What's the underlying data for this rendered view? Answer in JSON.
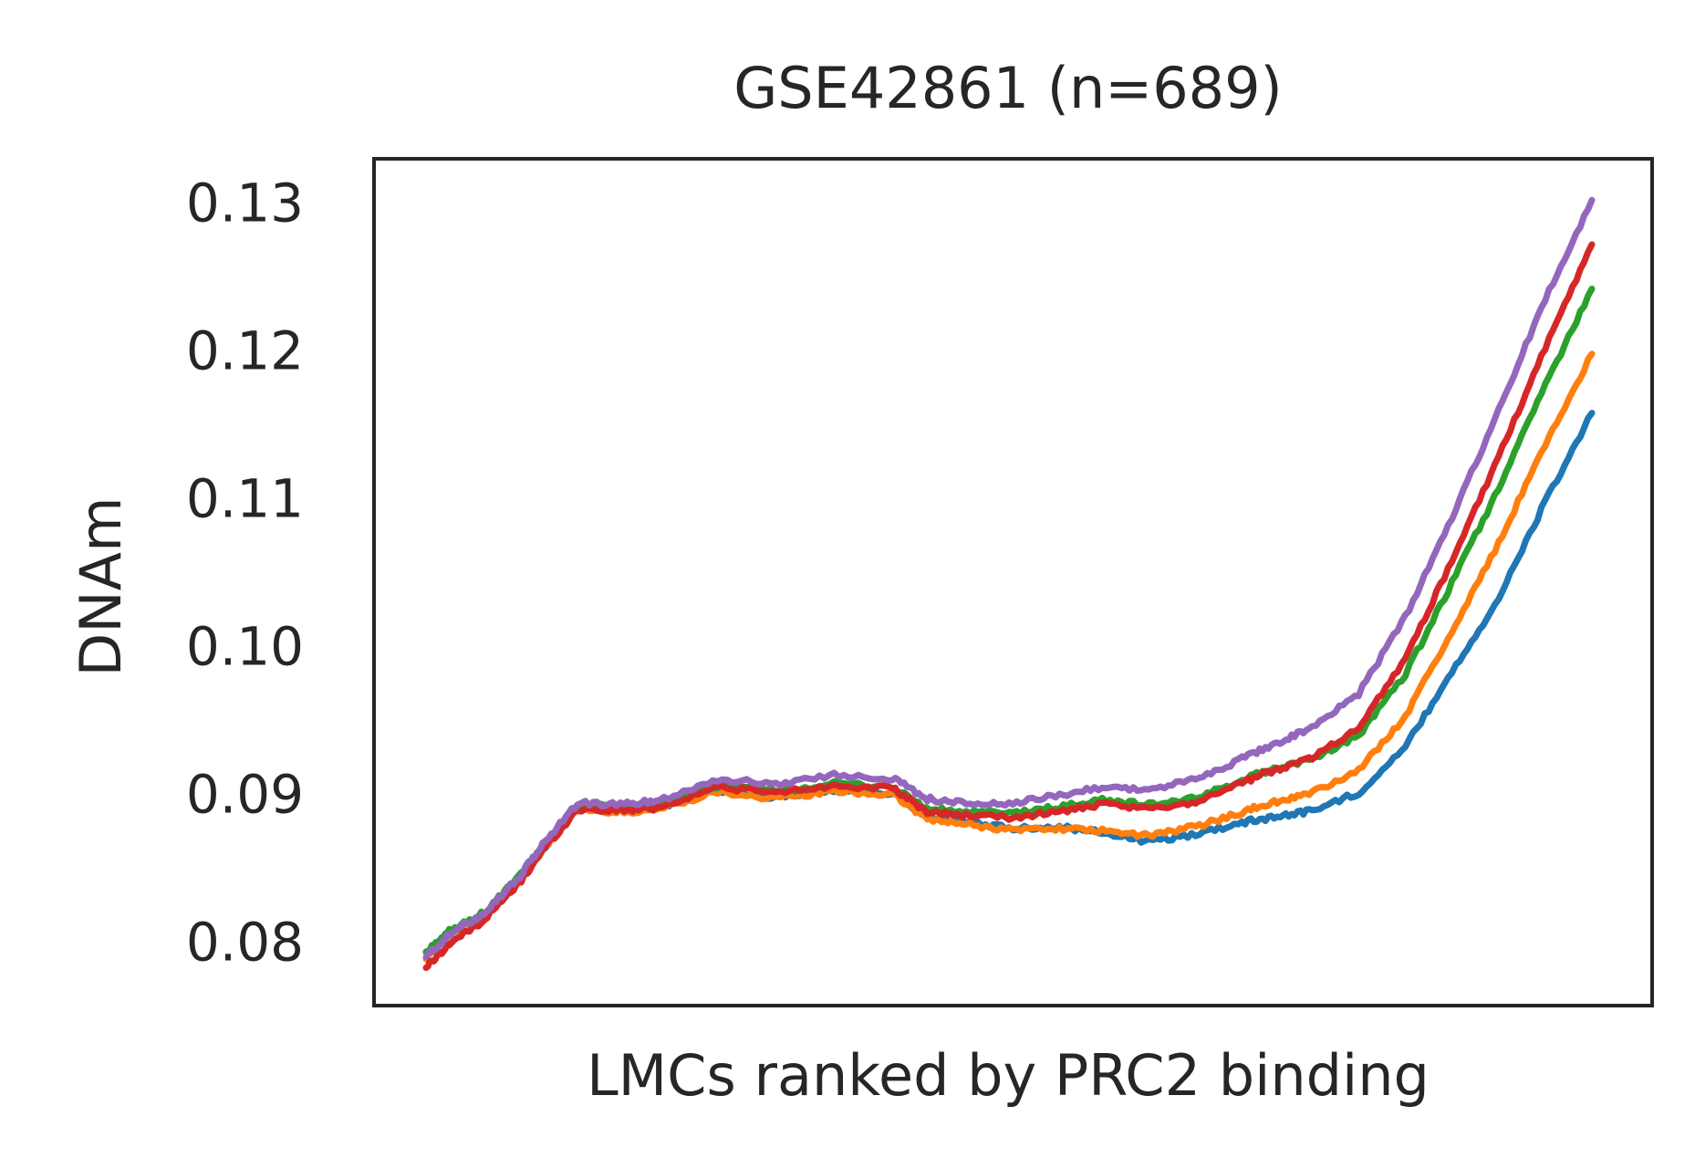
{
  "chart_data": {
    "type": "line",
    "title": "GSE42861 (n=689)",
    "xlabel": "LMCs ranked by PRC2 binding",
    "ylabel": "DNAm",
    "xlim": [
      0,
      1
    ],
    "ylim": [
      0.0757,
      0.133
    ],
    "y_ticks": [
      {
        "value": 0.08,
        "label": "0.08"
      },
      {
        "value": 0.09,
        "label": "0.09"
      },
      {
        "value": 0.1,
        "label": "0.10"
      },
      {
        "value": 0.11,
        "label": "0.11"
      },
      {
        "value": 0.12,
        "label": "0.12"
      },
      {
        "value": 0.13,
        "label": "0.13"
      }
    ],
    "x_ticks": [],
    "grid": false,
    "legend": null,
    "colors": [
      "#1f77b4",
      "#ff7f0e",
      "#2ca02c",
      "#d62728",
      "#9467bd"
    ],
    "x": [
      0,
      0.02,
      0.05,
      0.08,
      0.1,
      0.13,
      0.17,
      0.2,
      0.25,
      0.3,
      0.35,
      0.4,
      0.43,
      0.46,
      0.5,
      0.54,
      0.58,
      0.62,
      0.66,
      0.7,
      0.73,
      0.76,
      0.8,
      0.84,
      0.88,
      0.92,
      0.96,
      1.0
    ],
    "series": [
      {
        "color": "#1f77b4",
        "values": [
          0.0792,
          0.0806,
          0.0818,
          0.0842,
          0.0863,
          0.0891,
          0.0889,
          0.0891,
          0.0903,
          0.0898,
          0.0903,
          0.0901,
          0.0885,
          0.0881,
          0.0877,
          0.0878,
          0.0874,
          0.0868,
          0.0873,
          0.0881,
          0.0885,
          0.0889,
          0.0901,
          0.0932,
          0.0983,
          0.1032,
          0.1098,
          0.1158
        ]
      },
      {
        "color": "#ff7f0e",
        "values": [
          0.079,
          0.0805,
          0.0818,
          0.0842,
          0.0862,
          0.089,
          0.0888,
          0.089,
          0.0902,
          0.0897,
          0.0902,
          0.09,
          0.0883,
          0.088,
          0.0876,
          0.0877,
          0.0875,
          0.0872,
          0.0878,
          0.0888,
          0.0895,
          0.0901,
          0.0916,
          0.0953,
          0.101,
          0.107,
          0.1137,
          0.1198
        ]
      },
      {
        "color": "#2ca02c",
        "values": [
          0.0793,
          0.0807,
          0.082,
          0.0844,
          0.0864,
          0.0893,
          0.0891,
          0.0893,
          0.0906,
          0.0902,
          0.0907,
          0.0905,
          0.089,
          0.0888,
          0.0887,
          0.0891,
          0.0896,
          0.0893,
          0.0897,
          0.091,
          0.0918,
          0.0924,
          0.094,
          0.0981,
          0.1043,
          0.1107,
          0.1177,
          0.1242
        ]
      },
      {
        "color": "#d62728",
        "values": [
          0.0783,
          0.0799,
          0.0815,
          0.084,
          0.0862,
          0.089,
          0.0889,
          0.0891,
          0.0905,
          0.0901,
          0.0906,
          0.0904,
          0.0888,
          0.0886,
          0.0884,
          0.0888,
          0.0893,
          0.089,
          0.0895,
          0.0908,
          0.0917,
          0.0925,
          0.0945,
          0.0992,
          0.1058,
          0.1128,
          0.1202,
          0.1272
        ]
      },
      {
        "color": "#9467bd",
        "values": [
          0.079,
          0.0805,
          0.082,
          0.0844,
          0.0866,
          0.0894,
          0.0893,
          0.0896,
          0.091,
          0.0907,
          0.0913,
          0.0911,
          0.0897,
          0.0894,
          0.0893,
          0.0899,
          0.0905,
          0.0903,
          0.091,
          0.0924,
          0.0935,
          0.0945,
          0.0968,
          0.102,
          0.1087,
          0.116,
          0.1235,
          0.1302
        ]
      }
    ]
  }
}
